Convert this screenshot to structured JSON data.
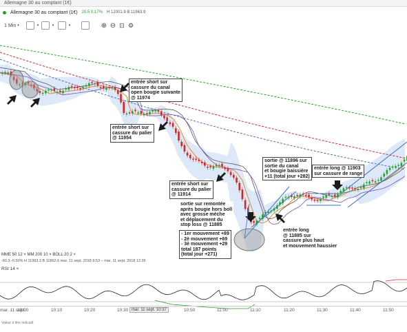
{
  "app": {
    "tab_title": "Allemagne 30 au comptant (1€)",
    "instrument": "Allemagne 30 au comptant (1€)",
    "change": "20.5  0.17%",
    "high_low": "H 12001.9  B 11963.9"
  },
  "toolbar": {
    "timeframe": "1 Min",
    "items": [
      "chart-type",
      "indicators",
      "draw",
      "tools",
      "zoom-in",
      "zoom-out",
      "zoom-reset",
      "settings"
    ]
  },
  "annotations": [
    {
      "id": "a1",
      "text": "entrée short sur\ncassure du canal\nopen bougie suivante\n@ 11974"
    },
    {
      "id": "a2",
      "text": "entrée short sur\ncassure du palier\n@ 11954"
    },
    {
      "id": "a3",
      "text": "entrée short sur\ncassure du palier\n@ 11914"
    },
    {
      "id": "a4",
      "text": "sortie sur remontée\naprès bougie hors boll\navec grosse mèche\net déplacement du\nstop loss @ 11885"
    },
    {
      "id": "a5",
      "text": "- 1er mouvement +89\n- 2è mouvement +69\n- 3è mouvement +29\ntotal 187 points\n(total jour +271)"
    },
    {
      "id": "a6",
      "text": "sortie @ 11896 sur\nsortie du canal\net bougie baissière\n+11 (total jour +282)"
    },
    {
      "id": "a7",
      "text": "entrée long @ 11903\nsur cassure de range"
    },
    {
      "id": "a8",
      "text": "entrée long\n@ 11885 sur\ncassure plus haut\net mouvement haussier"
    }
  ],
  "legend": {
    "line1": [
      "MME",
      "50",
      "12",
      "MM",
      "200",
      "10",
      "BOLL",
      "20",
      "2"
    ],
    "line1_text": "MME  50  12  ×   MM  200  10  ×   BOLL  20  2  ×",
    "line2_text": "-60.3     -0.50%     H 11993.3   B 11862.6    mar. 11 sept. 2018 9:53 – mar. 11 sept. 2018 12:35"
  },
  "rsi": {
    "label": "RSI  14  ×"
  },
  "xaxis": {
    "ticks": [
      "10:00",
      "10:10",
      "10:20",
      "10:30",
      "10:40",
      "10:50",
      "11:00",
      "11:10",
      "11:20",
      "11:30",
      "11:40",
      "11:50"
    ],
    "left_label": "mar. 11 sept.",
    "crosshair_label": "mar. 11 sept. 10:37"
  },
  "footer": {
    "note": "Valeur à titre indicatif"
  },
  "colors": {
    "up": "#2ca02c",
    "down": "#d62728",
    "band": "#cfe0f5",
    "ema50": "#e08a2c",
    "ma200_green": "#2ca02c",
    "ma200_red": "#d62728"
  }
}
